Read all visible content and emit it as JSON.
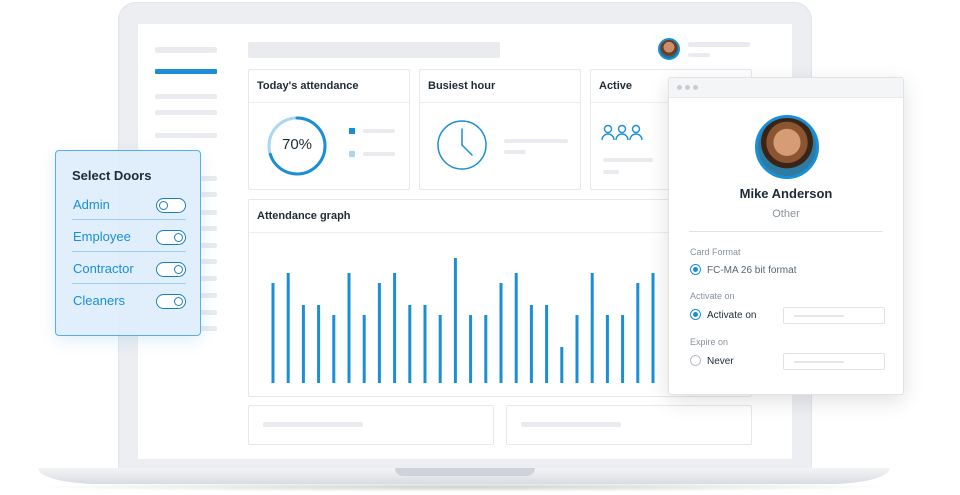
{
  "doors_panel": {
    "title": "Select Doors",
    "items": [
      {
        "label": "Admin",
        "enabled": false
      },
      {
        "label": "Employee",
        "enabled": true
      },
      {
        "label": "Contractor",
        "enabled": true
      },
      {
        "label": "Cleaners",
        "enabled": true
      }
    ]
  },
  "dashboard": {
    "attendance_card": {
      "title": "Today's attendance",
      "percent_label": "70%",
      "percent_value": 0.7
    },
    "busiest_card": {
      "title": "Busiest hour"
    },
    "active_card": {
      "title": "Active"
    },
    "graph_card": {
      "title": "Attendance graph"
    }
  },
  "profile": {
    "name": "Mike Anderson",
    "role": "Other",
    "card_format_label": "Card Format",
    "card_format_value": "FC-MA 26 bit format",
    "activate_label": "Activate on",
    "activate_option": "Activate on",
    "expire_label": "Expire on",
    "expire_option": "Never"
  },
  "colors": {
    "accent": "#1a8fd6",
    "accent_light": "#a9d6f3",
    "panel_bg": "#deeefc"
  },
  "icons": {
    "busiest": "clock-icon",
    "active": "people-group-icon"
  }
}
